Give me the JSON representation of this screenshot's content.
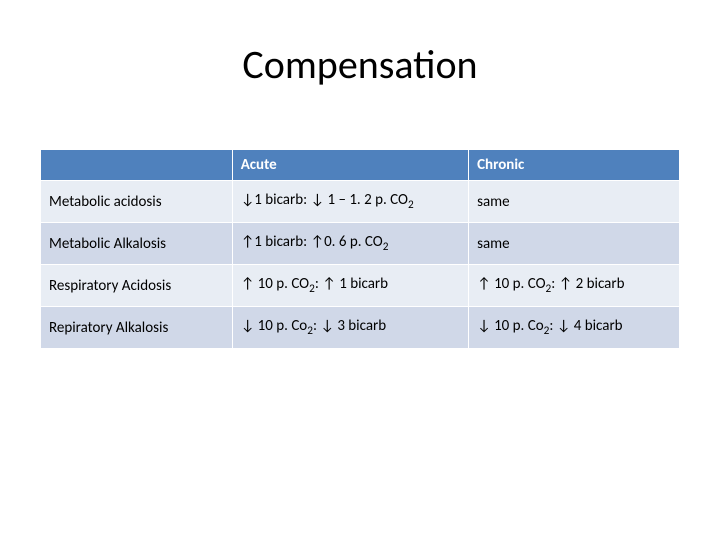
{
  "slide": {
    "title": "Compensation",
    "title_fontsize": 40,
    "title_color": "#000000",
    "background_color": "#ffffff"
  },
  "table": {
    "type": "table",
    "header_bg": "#4f81bd",
    "header_text_color": "#ffffff",
    "band_colors": [
      "#e8edf4",
      "#d0d8e8"
    ],
    "border_color": "#ffffff",
    "cell_fontsize": 15,
    "column_widths_pct": [
      30,
      37,
      33
    ],
    "columns": [
      "",
      "Acute",
      "Chronic"
    ],
    "rows": [
      {
        "label": "Metabolic acidosis",
        "acute_html": "↓1 bicarb: ↓ 1 – 1. 2 p. CO<sub class='sub'>2</sub>",
        "chronic_html": "same"
      },
      {
        "label": "Metabolic Alkalosis",
        "acute_html": "↑1 bicarb: ↑0. 6 p. CO<sub class='sub'>2</sub>",
        "chronic_html": "same"
      },
      {
        "label": "Respiratory Acidosis",
        "acute_html": "↑ 10 p. CO<sub class='sub'>2</sub>: ↑ 1 bicarb",
        "chronic_html": "↑ 10 p. CO<sub class='sub'>2</sub>: ↑ 2 bicarb"
      },
      {
        "label": "Repiratory Alkalosis",
        "acute_html": "↓ 10 p. Co<sub class='sub'>2</sub>: ↓ 3 bicarb",
        "chronic_html": "↓ 10 p. Co<sub class='sub'>2</sub>: ↓ 4 bicarb"
      }
    ]
  }
}
